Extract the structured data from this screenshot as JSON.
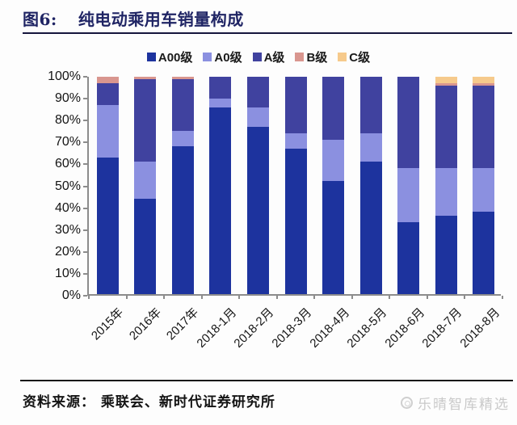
{
  "header": {
    "figure_label": "图6:",
    "title": "纯电动乘用车销量构成"
  },
  "footer": {
    "source": "资料来源： 乘联会、新时代证券研究所",
    "watermark": "乐晴智库精选"
  },
  "colors": {
    "title_navy": "#1f2464",
    "rule_dark": "#15153d",
    "axis_gray": "#8c8c8c",
    "text_black": "#141414",
    "watermark_gray": "#c9c9c9",
    "series_a00": "#1d339e",
    "series_a0": "#8b90e0",
    "series_a": "#40429f",
    "series_b": "#d9968f",
    "series_c": "#f6ca8c"
  },
  "chart_data": {
    "type": "bar",
    "stacked": true,
    "percent": true,
    "title": "纯电动乘用车销量构成",
    "legend_position": "top",
    "grid": false,
    "ylim": [
      0,
      100
    ],
    "y_ticks": [
      "100%",
      "90%",
      "80%",
      "70%",
      "60%",
      "50%",
      "40%",
      "30%",
      "20%",
      "10%",
      "0%"
    ],
    "categories": [
      "2015年",
      "2016年",
      "2017年",
      "2018-1月",
      "2018-2月",
      "2018-3月",
      "2018-4月",
      "2018-5月",
      "2018-6月",
      "2018-7月",
      "2018-8月"
    ],
    "series": [
      {
        "name": "A00级",
        "color": "#1d339e",
        "values": [
          63,
          44,
          68,
          86,
          77,
          67,
          52,
          61,
          33,
          36,
          38
        ]
      },
      {
        "name": "A0级",
        "color": "#8b90e0",
        "values": [
          24,
          17,
          7,
          4,
          9,
          7,
          19,
          13,
          25,
          22,
          20
        ]
      },
      {
        "name": "A级",
        "color": "#40429f",
        "values": [
          10,
          38,
          24,
          10,
          14,
          26,
          29,
          26,
          42,
          38,
          38
        ]
      },
      {
        "name": "B级",
        "color": "#d9968f",
        "values": [
          3,
          1,
          1,
          0,
          0,
          0,
          0,
          0,
          0,
          1,
          1
        ]
      },
      {
        "name": "C级",
        "color": "#f6ca8c",
        "values": [
          0,
          0,
          0,
          0,
          0,
          0,
          0,
          0,
          0,
          3,
          3
        ]
      }
    ]
  }
}
